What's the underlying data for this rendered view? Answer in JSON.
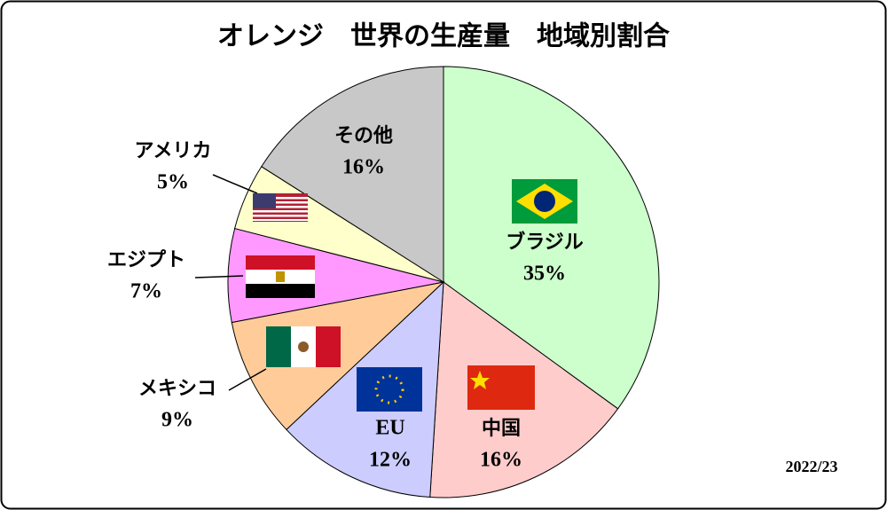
{
  "chart_data": {
    "type": "pie",
    "title": "オレンジ　世界の生産量　地域別割合",
    "categories": [
      "ブラジル",
      "中国",
      "EU",
      "メキシコ",
      "エジプト",
      "アメリカ",
      "その他"
    ],
    "values": [
      35,
      16,
      12,
      9,
      7,
      5,
      16
    ],
    "value_labels": [
      "35%",
      "16%",
      "12%",
      "9%",
      "7%",
      "5%",
      "16%"
    ],
    "colors": [
      "#ccffcc",
      "#ffcccc",
      "#ccccff",
      "#ffcc99",
      "#ff99ff",
      "#ffffcc",
      "#c8c8c8"
    ],
    "note": "2022/23"
  }
}
